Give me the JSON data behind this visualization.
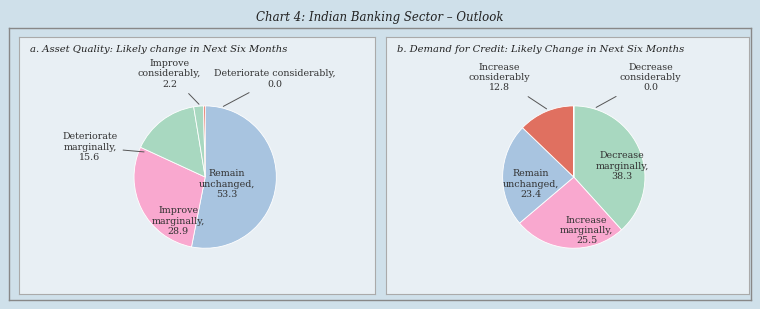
{
  "title": "Chart 4: Indian Banking Sector – Outlook",
  "title_fontsize": 8.5,
  "bg_color": "#cfe0ea",
  "panel_bg": "#e8eff4",
  "panel_a_title": "a. Asset Quality: Likely change in Next Six Months",
  "panel_b_title": "b. Demand for Credit: Likely Change in Next Six Months",
  "pie_a": {
    "values": [
      53.3,
      28.9,
      15.6,
      2.2,
      0.4
    ],
    "colors": [
      "#a8c4e0",
      "#f9a8cf",
      "#a8d8c0",
      "#a8d8c0",
      "#e07060"
    ],
    "startangle": 90
  },
  "pie_b": {
    "values": [
      38.3,
      25.5,
      23.4,
      12.8,
      0.0001
    ],
    "colors": [
      "#a8d8c0",
      "#f9a8cf",
      "#a8c4e0",
      "#e07060",
      "#a8d8c0"
    ],
    "startangle": 90
  }
}
